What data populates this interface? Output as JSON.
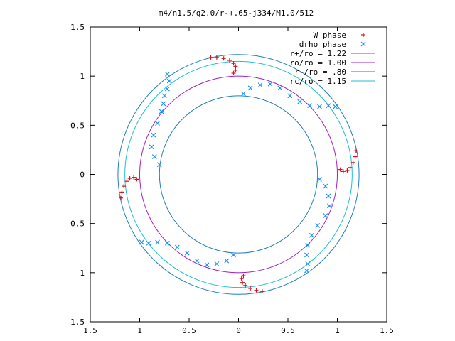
{
  "chart_data": {
    "type": "scatter",
    "title": "m4/n1.5/q2.0/r-+.65-j334/M1.0/512",
    "xlabel": "",
    "ylabel": "",
    "xlim": [
      -1.5,
      1.5
    ],
    "ylim": [
      -1.5,
      1.5
    ],
    "grid": false,
    "legend_position": "top-right",
    "x_tick_labels": [
      "1.5",
      "1",
      "0.5",
      "0",
      "0.5",
      "1",
      "1.5"
    ],
    "y_tick_labels": [
      "1.5",
      "1",
      "0.5",
      "0",
      "0.5",
      "1",
      "1.5"
    ],
    "circles": [
      {
        "name": "r+/ro = 1.22",
        "r": 1.22,
        "color": "#1f7fbf"
      },
      {
        "name": "ro/ro = 1.00",
        "r": 1.0,
        "color": "#a020c0"
      },
      {
        "name": "r-/ro = .80",
        "r": 0.8,
        "color": "#1f7fbf"
      },
      {
        "name": "rc/ro = 1.15",
        "r": 1.15,
        "color": "#1fbfd0"
      }
    ],
    "series": [
      {
        "name": "W phase",
        "marker": "+",
        "color": "#e0101a",
        "points": [
          [
            -0.28,
            1.19
          ],
          [
            -0.22,
            1.19
          ],
          [
            -0.15,
            1.18
          ],
          [
            -0.09,
            1.16
          ],
          [
            -0.05,
            1.13
          ],
          [
            -0.03,
            1.1
          ],
          [
            -0.03,
            1.06
          ],
          [
            -0.05,
            1.03
          ],
          [
            1.19,
            0.24
          ],
          [
            1.18,
            0.18
          ],
          [
            1.16,
            0.12
          ],
          [
            1.13,
            0.07
          ],
          [
            1.1,
            0.04
          ],
          [
            1.06,
            0.03
          ],
          [
            1.03,
            0.05
          ],
          [
            0.24,
            -1.19
          ],
          [
            0.18,
            -1.18
          ],
          [
            0.12,
            -1.16
          ],
          [
            0.07,
            -1.13
          ],
          [
            0.04,
            -1.1
          ],
          [
            0.03,
            -1.06
          ],
          [
            0.05,
            -1.03
          ],
          [
            -1.19,
            -0.24
          ],
          [
            -1.18,
            -0.18
          ],
          [
            -1.16,
            -0.12
          ],
          [
            -1.13,
            -0.07
          ],
          [
            -1.1,
            -0.04
          ],
          [
            -1.06,
            -0.03
          ],
          [
            -1.03,
            -0.05
          ]
        ]
      },
      {
        "name": "drho phase",
        "marker": "x",
        "color": "#1e90ff",
        "points": [
          [
            -0.72,
            1.02
          ],
          [
            -0.7,
            0.95
          ],
          [
            -0.72,
            0.87
          ],
          [
            -0.75,
            0.8
          ],
          [
            -0.76,
            0.72
          ],
          [
            -0.78,
            0.64
          ],
          [
            -0.82,
            0.52
          ],
          [
            -0.86,
            0.4
          ],
          [
            -0.88,
            0.28
          ],
          [
            -0.85,
            0.18
          ],
          [
            -0.8,
            0.1
          ],
          [
            0.05,
            0.82
          ],
          [
            0.12,
            0.88
          ],
          [
            0.22,
            0.91
          ],
          [
            0.32,
            0.92
          ],
          [
            0.42,
            0.88
          ],
          [
            0.52,
            0.8
          ],
          [
            0.62,
            0.74
          ],
          [
            0.72,
            0.7
          ],
          [
            0.82,
            0.69
          ],
          [
            0.91,
            0.7
          ],
          [
            0.98,
            0.69
          ],
          [
            0.82,
            -0.05
          ],
          [
            0.88,
            -0.12
          ],
          [
            0.91,
            -0.22
          ],
          [
            0.92,
            -0.32
          ],
          [
            0.88,
            -0.42
          ],
          [
            0.8,
            -0.52
          ],
          [
            0.74,
            -0.62
          ],
          [
            0.7,
            -0.72
          ],
          [
            0.69,
            -0.82
          ],
          [
            0.7,
            -0.91
          ],
          [
            0.69,
            -0.98
          ],
          [
            -0.05,
            -0.82
          ],
          [
            -0.12,
            -0.88
          ],
          [
            -0.22,
            -0.91
          ],
          [
            -0.32,
            -0.92
          ],
          [
            -0.42,
            -0.88
          ],
          [
            -0.52,
            -0.8
          ],
          [
            -0.62,
            -0.74
          ],
          [
            -0.72,
            -0.7
          ],
          [
            -0.82,
            -0.69
          ],
          [
            -0.91,
            -0.7
          ],
          [
            -0.98,
            -0.69
          ]
        ]
      }
    ]
  }
}
